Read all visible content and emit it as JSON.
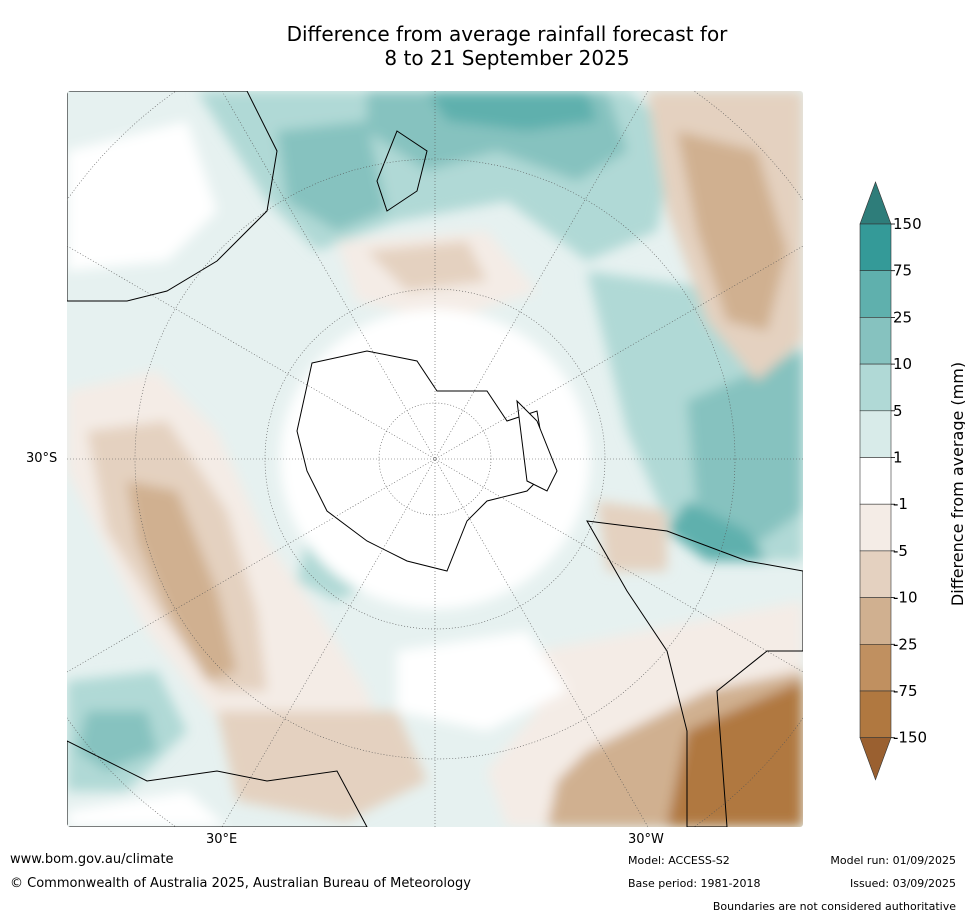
{
  "title_line1": "Difference from average rainfall forecast for",
  "title_line2": "8 to 21 September 2025",
  "map": {
    "projection": "south-polar-stereographic",
    "lat_label": "30°S",
    "lon_labels": [
      "30°E",
      "30°W"
    ]
  },
  "legend": {
    "title": "Difference from average (mm)",
    "ticks": [
      "150",
      "75",
      "25",
      "10",
      "5",
      "1",
      "-1",
      "-5",
      "-10",
      "-25",
      "-75",
      "-150"
    ],
    "colors": [
      "#2e7d7a",
      "#349a98",
      "#5fb0ad",
      "#86c2bf",
      "#b0d9d6",
      "#d8ebe9",
      "#ffffff",
      "#f4ece6",
      "#e4d1c0",
      "#d0b090",
      "#c09060",
      "#b07840",
      "#9a6030"
    ]
  },
  "footer": {
    "url": "www.bom.gov.au/climate",
    "copyright": "© Commonwealth of Australia 2025, Australian Bureau of Meteorology",
    "model": "Model: ACCESS-S2",
    "base_period": "Base period: 1981-2018",
    "model_run": "Model run: 01/09/2025",
    "issued": "Issued: 03/09/2025",
    "disclaimer": "Boundaries are not considered authoritative"
  }
}
